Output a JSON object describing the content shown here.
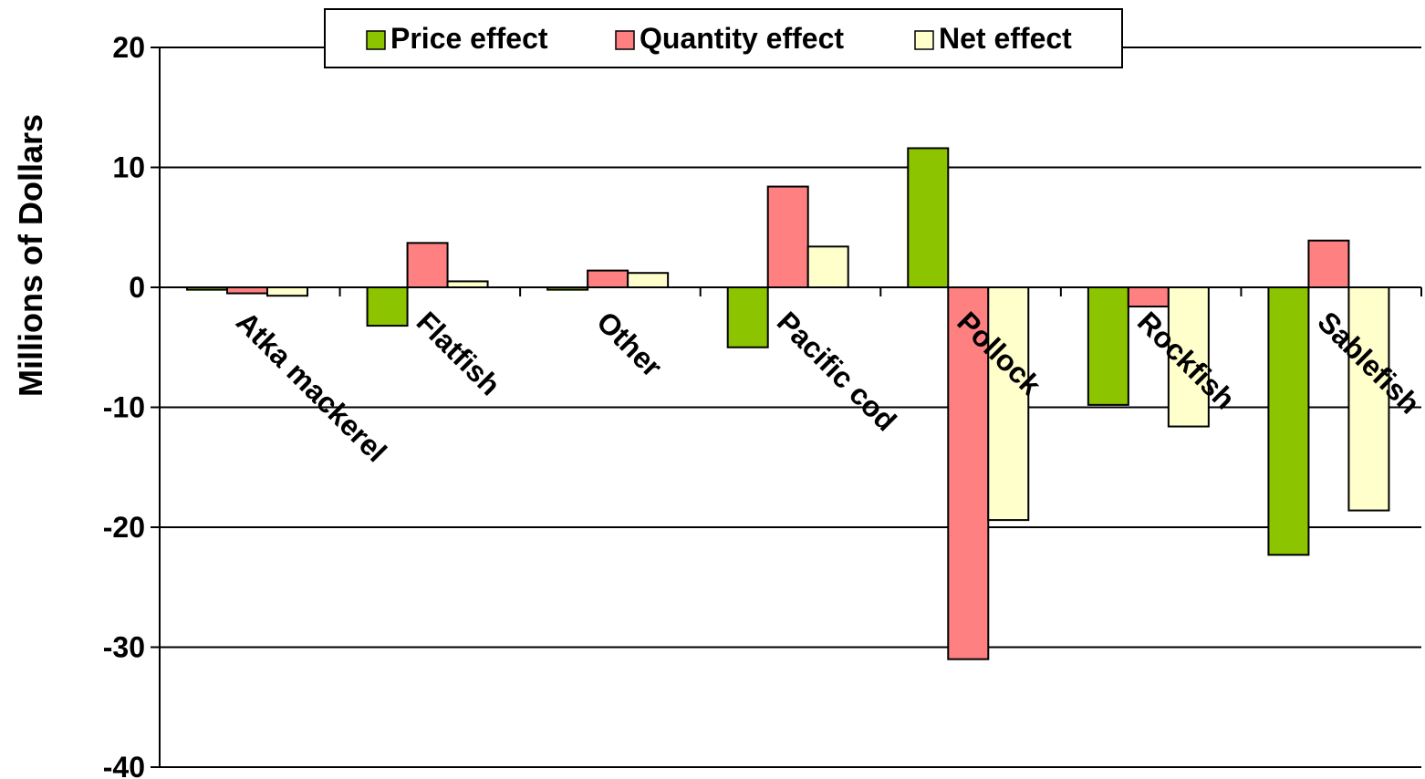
{
  "chart_data": {
    "type": "bar",
    "title": "",
    "xlabel": "",
    "ylabel": "Millions of Dollars",
    "ylim": [
      -40,
      20
    ],
    "yticks": [
      20,
      10,
      0,
      -10,
      -20,
      -30,
      -40
    ],
    "grid": true,
    "legend_position": "top",
    "categories": [
      "Atka mackerel",
      "Flatfish",
      "Other",
      "Pacific cod",
      "Pollock",
      "Rockfish",
      "Sablefish"
    ],
    "series": [
      {
        "name": "Price effect",
        "color": "#8cc500",
        "values": [
          -0.2,
          -3.2,
          -0.2,
          -5.0,
          11.6,
          -9.8,
          -22.3
        ]
      },
      {
        "name": "Quantity effect",
        "color": "#ff8080",
        "values": [
          -0.5,
          3.7,
          1.4,
          8.4,
          -31.0,
          -1.6,
          3.9
        ]
      },
      {
        "name": "Net effect",
        "color": "#ffffcc",
        "values": [
          -0.7,
          0.5,
          1.2,
          3.4,
          -19.4,
          -11.6,
          -18.6
        ]
      }
    ]
  }
}
